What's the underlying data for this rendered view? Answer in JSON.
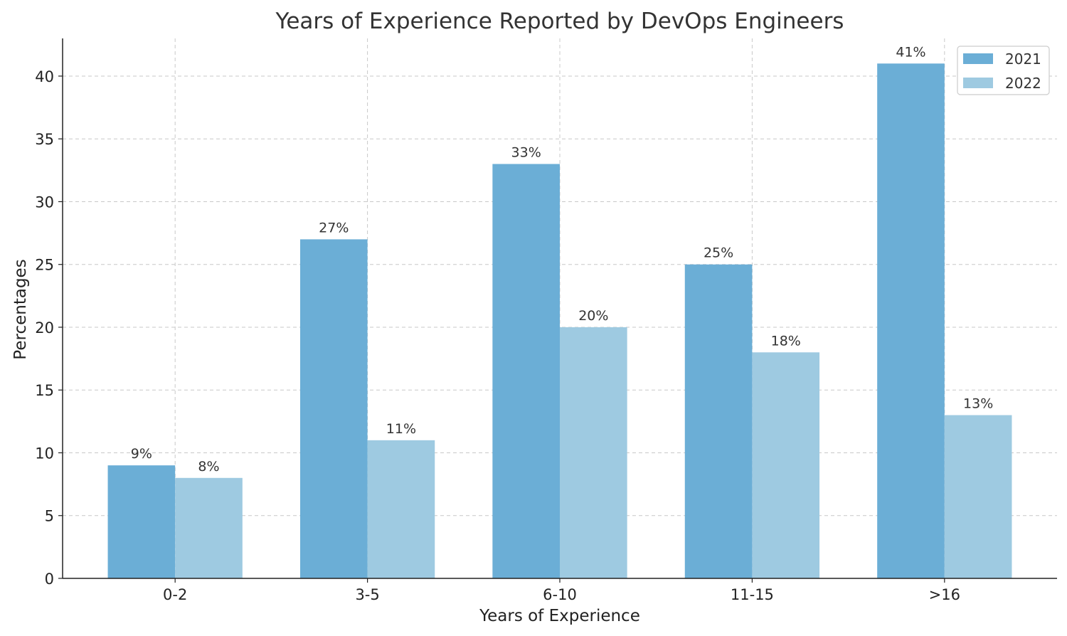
{
  "chart_data": {
    "type": "bar",
    "title": "Years of Experience Reported by DevOps Engineers",
    "xlabel": "Years of Experience",
    "ylabel": "Percentages",
    "categories": [
      "0-2",
      "3-5",
      "6-10",
      "11-15",
      ">16"
    ],
    "series": [
      {
        "name": "2021",
        "values": [
          9,
          27,
          33,
          25,
          41
        ],
        "color": "#6baed6",
        "labels": [
          "9%",
          "27%",
          "33%",
          "25%",
          "41%"
        ]
      },
      {
        "name": "2022",
        "values": [
          8,
          11,
          20,
          18,
          13
        ],
        "color": "#9ecae1",
        "labels": [
          "8%",
          "11%",
          "20%",
          "18%",
          "13%"
        ]
      }
    ],
    "ylim": [
      0,
      43
    ],
    "yticks": [
      0,
      5,
      10,
      15,
      20,
      25,
      30,
      35,
      40
    ],
    "grid": true,
    "legend": "top-right"
  }
}
